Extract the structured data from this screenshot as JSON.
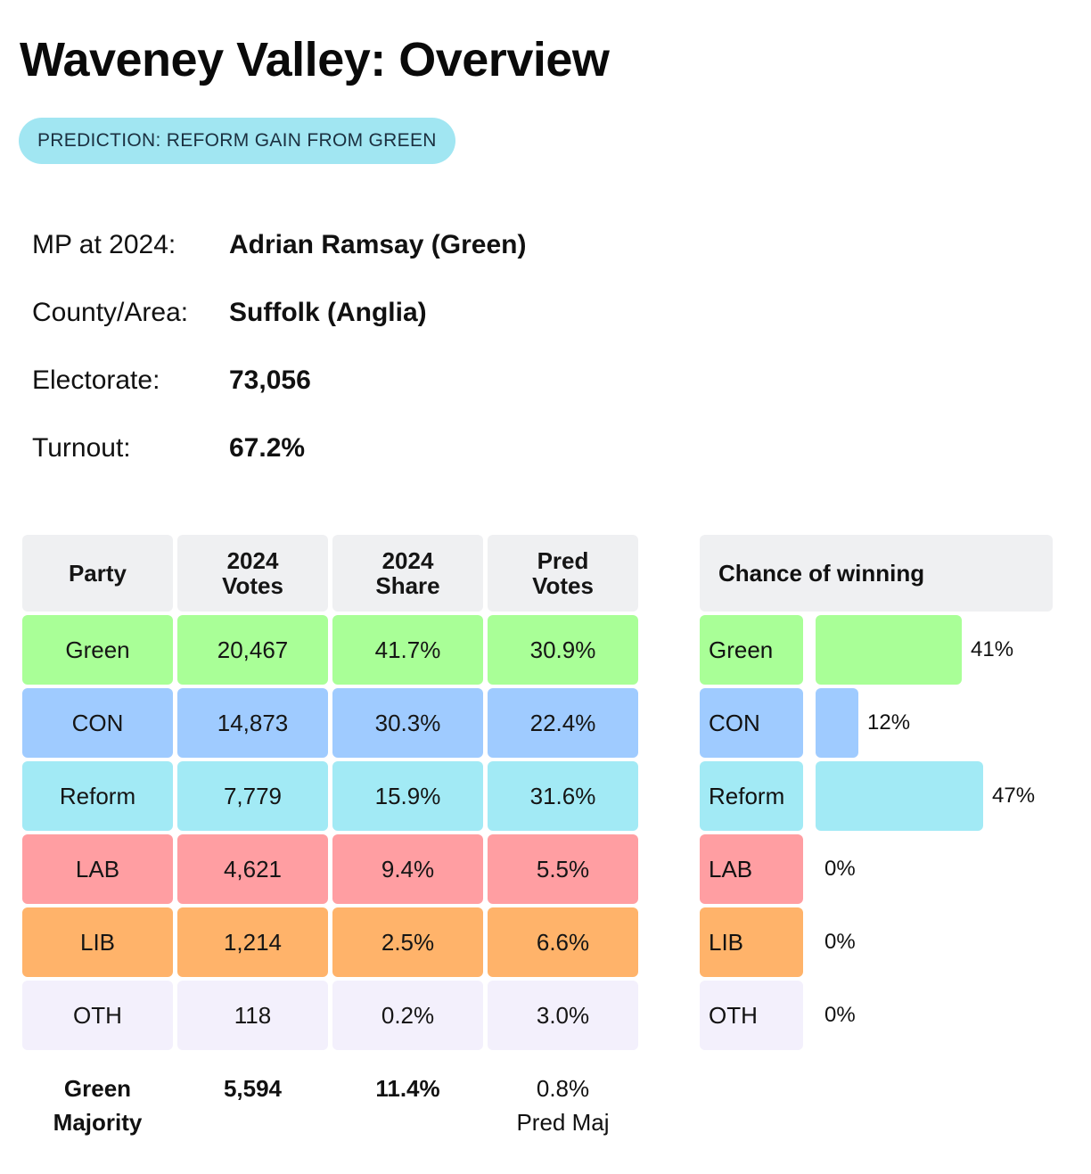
{
  "title": "Waveney Valley: Overview",
  "prediction": "PREDICTION: REFORM GAIN FROM GREEN",
  "info": {
    "mp_label": "MP at 2024:",
    "mp_value": "Adrian Ramsay  (Green)",
    "county_label": "County/Area:",
    "county_value": "Suffolk (Anglia)",
    "electorate_label": "Electorate:",
    "electorate_value": "73,056",
    "turnout_label": "Turnout:",
    "turnout_value": "67.2%"
  },
  "table": {
    "headers": {
      "party": "Party",
      "votes_l1": "2024",
      "votes_l2": "Votes",
      "share_l1": "2024",
      "share_l2": "Share",
      "pred_l1": "Pred",
      "pred_l2": "Votes"
    },
    "rows": [
      {
        "party": "Green",
        "votes": "20,467",
        "share": "41.7%",
        "pred": "30.9%",
        "color": "#a9ff97"
      },
      {
        "party": "CON",
        "votes": "14,873",
        "share": "30.3%",
        "pred": "22.4%",
        "color": "#9fcbff"
      },
      {
        "party": "Reform",
        "votes": "7,779",
        "share": "15.9%",
        "pred": "31.6%",
        "color": "#a2eaf5"
      },
      {
        "party": "LAB",
        "votes": "4,621",
        "share": "9.4%",
        "pred": "5.5%",
        "color": "#ff9ea2"
      },
      {
        "party": "LIB",
        "votes": "1,214",
        "share": "2.5%",
        "pred": "6.6%",
        "color": "#ffb36a"
      },
      {
        "party": "OTH",
        "votes": "118",
        "share": "0.2%",
        "pred": "3.0%",
        "color": "#f3f0fc"
      }
    ],
    "footer": {
      "label_l1": "Green",
      "label_l2": "Majority",
      "votes": "5,594",
      "share": "11.4%",
      "pred_l1": "0.8%",
      "pred_l2": "Pred Maj"
    }
  },
  "chance": {
    "header": "Chance of winning",
    "rows": [
      {
        "party": "Green",
        "percent": 41,
        "label": "41%"
      },
      {
        "party": "CON",
        "percent": 12,
        "label": "12%"
      },
      {
        "party": "Reform",
        "percent": 47,
        "label": "47%"
      },
      {
        "party": "LAB",
        "percent": 0,
        "label": "0%"
      },
      {
        "party": "LIB",
        "percent": 0,
        "label": "0%"
      },
      {
        "party": "OTH",
        "percent": 0,
        "label": "0%"
      }
    ]
  }
}
